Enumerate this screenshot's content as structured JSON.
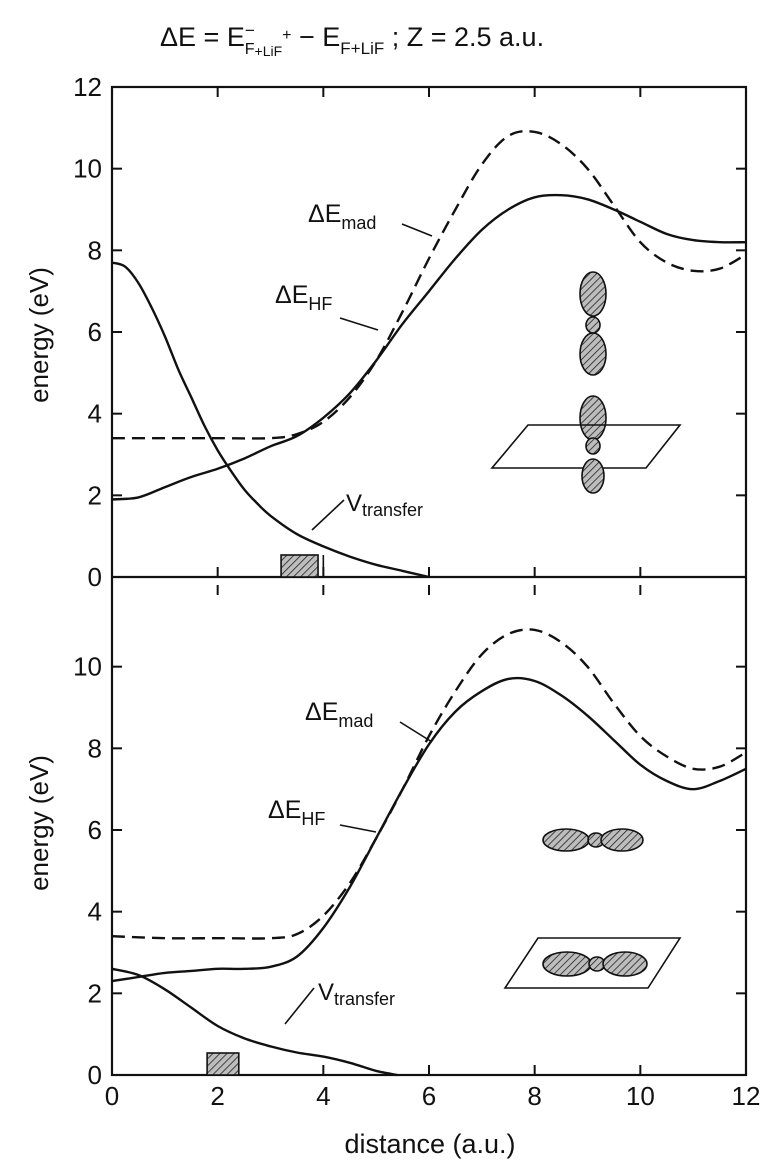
{
  "title": {
    "prefix": "ΔE = E",
    "sup1": "−",
    "sub1": "F",
    "sub1b": "+LiF",
    "sup1b": "+",
    "mid": " − E",
    "sub2": "F+LiF",
    "suffix": " ;   Z = 2.5 a.u."
  },
  "xlabel": "distance (a.u.)",
  "ylabel": "energy (eV)",
  "label_dE": "ΔE",
  "label_mad": "mad",
  "label_hf": "HF",
  "label_V": "V",
  "label_transfer": "transfer",
  "chart_data": [
    {
      "type": "line",
      "panel": "top",
      "xlabel": "",
      "ylabel": "energy (eV)",
      "xlim": [
        0,
        12
      ],
      "ylim": [
        0,
        12
      ],
      "xticks": [
        "0",
        "2",
        "4",
        "6",
        "8",
        "10",
        "12"
      ],
      "yticks": [
        "0",
        "2",
        "4",
        "6",
        "8",
        "10",
        "12"
      ],
      "series": [
        {
          "name": "ΔE_mad",
          "style": "dashed",
          "x": [
            0,
            1,
            2,
            3,
            3.5,
            4,
            4.5,
            5,
            5.5,
            6,
            6.5,
            7,
            7.5,
            8,
            8.5,
            9,
            9.5,
            10,
            10.5,
            11,
            11.5,
            12
          ],
          "y": [
            3.4,
            3.4,
            3.4,
            3.4,
            3.5,
            3.8,
            4.4,
            5.3,
            6.5,
            7.8,
            9.0,
            10.1,
            10.8,
            10.9,
            10.6,
            10.0,
            9.1,
            8.2,
            7.7,
            7.5,
            7.55,
            7.9
          ]
        },
        {
          "name": "ΔE_HF",
          "style": "solid",
          "x": [
            0,
            0.5,
            1,
            1.5,
            2,
            2.5,
            3,
            3.5,
            4,
            4.5,
            5,
            5.5,
            6,
            6.5,
            7,
            7.5,
            8,
            8.5,
            9,
            9.5,
            10,
            10.5,
            11,
            11.5,
            12
          ],
          "y": [
            1.9,
            1.95,
            2.2,
            2.45,
            2.65,
            2.9,
            3.2,
            3.45,
            3.9,
            4.5,
            5.3,
            6.2,
            7.0,
            7.8,
            8.5,
            9.0,
            9.3,
            9.35,
            9.25,
            9.0,
            8.7,
            8.4,
            8.25,
            8.2,
            8.2
          ]
        },
        {
          "name": "V_transfer",
          "style": "solid",
          "x": [
            0,
            0.25,
            0.5,
            0.75,
            1,
            1.25,
            1.5,
            1.75,
            2,
            2.25,
            2.5,
            2.75,
            3,
            3.5,
            4,
            4.5,
            5,
            5.5,
            6
          ],
          "y": [
            7.7,
            7.6,
            7.2,
            6.6,
            5.9,
            5.1,
            4.4,
            3.7,
            3.1,
            2.6,
            2.15,
            1.8,
            1.5,
            1.05,
            0.75,
            0.5,
            0.3,
            0.15,
            0.0
          ]
        }
      ],
      "marker": {
        "type": "hatched-box",
        "x_range": [
          3.2,
          3.9
        ],
        "extra_tick_x": 4.0
      }
    },
    {
      "type": "line",
      "panel": "bottom",
      "xlabel": "distance (a.u.)",
      "ylabel": "energy (eV)",
      "xlim": [
        0,
        12
      ],
      "ylim": [
        0,
        12
      ],
      "xticks": [
        "0",
        "2",
        "4",
        "6",
        "8",
        "10",
        "12"
      ],
      "yticks": [
        "0",
        "2",
        "4",
        "6",
        "8",
        "10"
      ],
      "series": [
        {
          "name": "ΔE_mad",
          "style": "dashed",
          "x": [
            0,
            1,
            2,
            3,
            3.5,
            4,
            4.5,
            5,
            5.5,
            6,
            6.5,
            7,
            7.5,
            8,
            8.5,
            9,
            9.5,
            10,
            10.5,
            11,
            11.5,
            12
          ],
          "y": [
            3.4,
            3.35,
            3.35,
            3.35,
            3.45,
            3.9,
            4.7,
            5.8,
            7.0,
            8.3,
            9.4,
            10.3,
            10.8,
            10.9,
            10.6,
            10.0,
            9.1,
            8.3,
            7.8,
            7.5,
            7.55,
            7.9
          ]
        },
        {
          "name": "ΔE_HF",
          "style": "solid",
          "x": [
            0,
            0.5,
            1,
            1.5,
            2,
            2.5,
            3,
            3.5,
            4,
            4.5,
            5,
            5.5,
            6,
            6.5,
            7,
            7.5,
            8,
            8.5,
            9,
            9.5,
            10,
            10.5,
            11,
            11.5,
            12
          ],
          "y": [
            2.3,
            2.4,
            2.5,
            2.55,
            2.6,
            2.6,
            2.65,
            2.9,
            3.6,
            4.6,
            5.8,
            7.0,
            8.1,
            8.9,
            9.4,
            9.7,
            9.65,
            9.3,
            8.8,
            8.2,
            7.6,
            7.2,
            7.0,
            7.2,
            7.5
          ]
        },
        {
          "name": "V_transfer",
          "style": "solid",
          "x": [
            0,
            0.5,
            1,
            1.5,
            2,
            2.5,
            3,
            3.5,
            4,
            4.5,
            5,
            5.4
          ],
          "y": [
            2.6,
            2.45,
            2.1,
            1.65,
            1.2,
            0.9,
            0.7,
            0.55,
            0.45,
            0.3,
            0.1,
            0.0
          ]
        }
      ],
      "marker": {
        "type": "hatched-box",
        "x_range": [
          1.8,
          2.4
        ]
      }
    }
  ]
}
